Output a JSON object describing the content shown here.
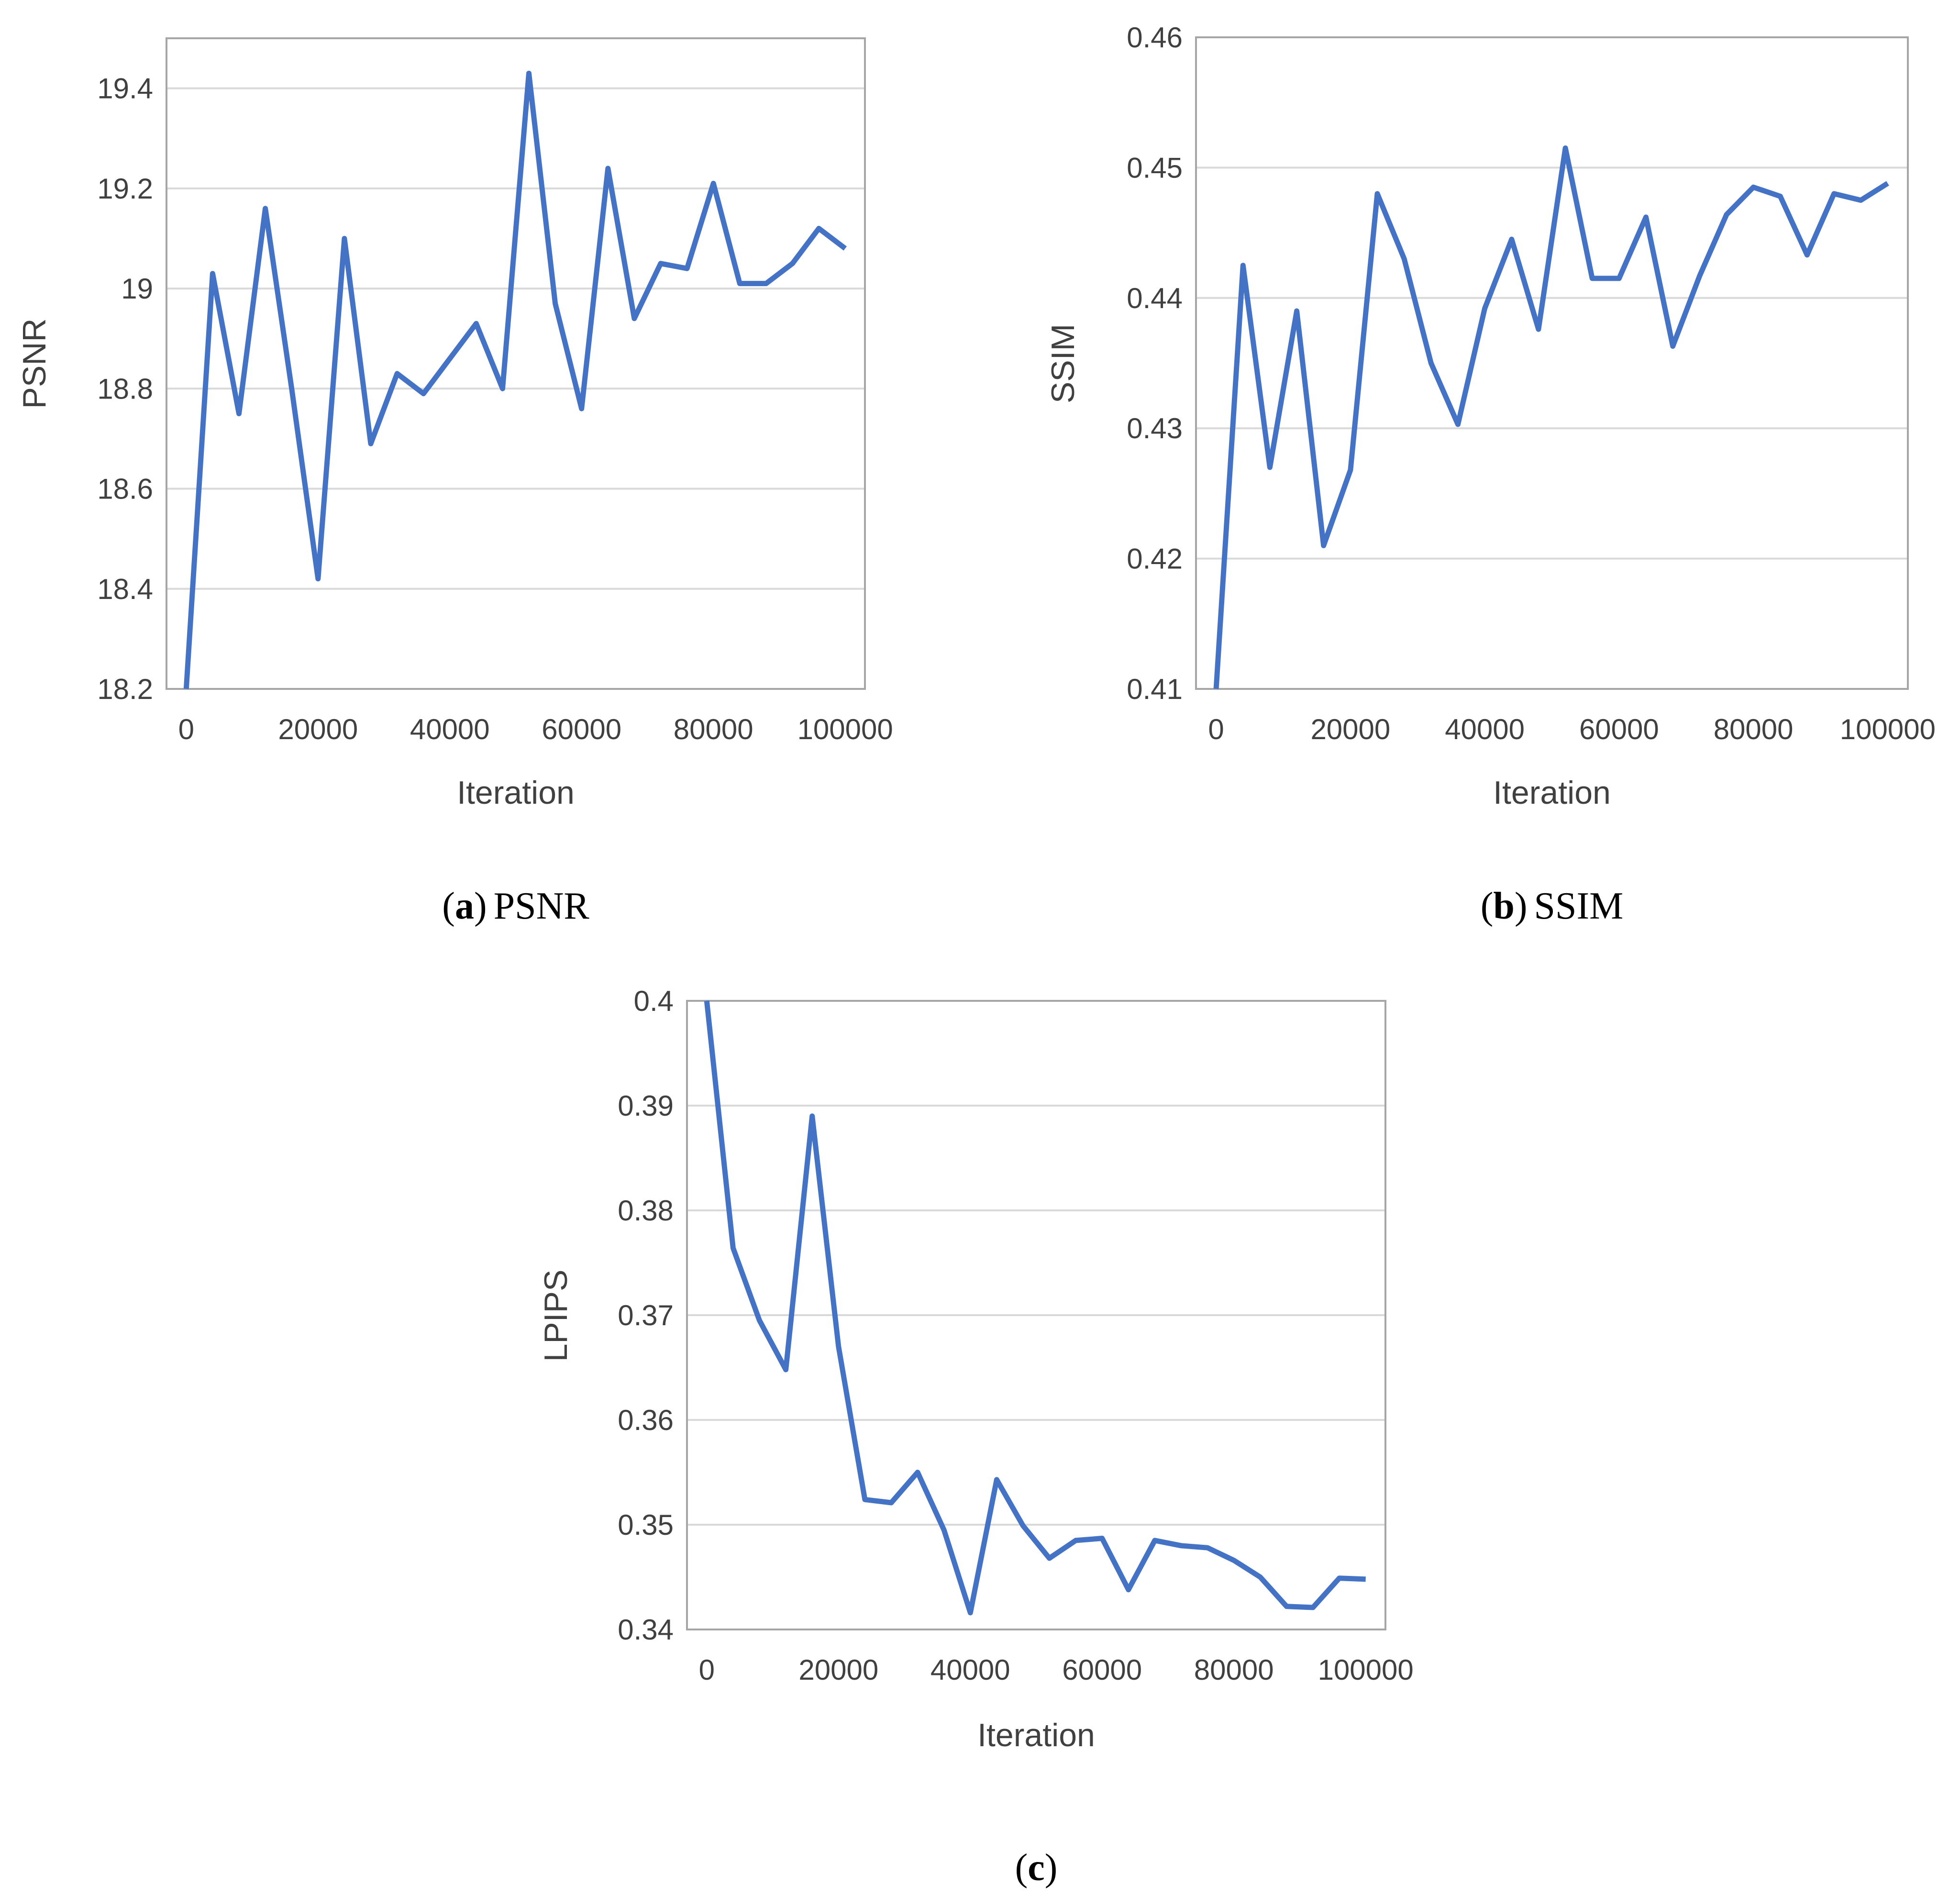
{
  "colors": {
    "line": "#4472C4",
    "grid": "#D9D9D9",
    "frame": "#A6A6A6",
    "text": "#404040"
  },
  "chart_data": [
    {
      "type": "line",
      "id": "psnr",
      "caption_letter": "a",
      "caption_text": "PSNR",
      "xlabel": "Iteration",
      "ylabel": "PSNR",
      "xlim": [
        -3000,
        103000
      ],
      "ylim": [
        18.2,
        19.5
      ],
      "yticks": [
        18.2,
        18.4,
        18.6,
        18.8,
        19.0,
        19.2,
        19.4
      ],
      "ytick_labels": [
        "18.2",
        "18.4",
        "18.6",
        "18.8",
        "19",
        "19.2",
        "19.4"
      ],
      "xticks": [
        0,
        20000,
        40000,
        60000,
        80000,
        100000
      ],
      "xtick_labels": [
        "0",
        "20000",
        "40000",
        "60000",
        "80000",
        "100000"
      ],
      "x": [
        0,
        4000,
        8000,
        12000,
        16000,
        20000,
        24000,
        28000,
        32000,
        36000,
        40000,
        44000,
        48000,
        52000,
        56000,
        60000,
        64000,
        68000,
        72000,
        76000,
        80000,
        84000,
        88000,
        92000,
        96000,
        100000
      ],
      "y": [
        18.2,
        19.03,
        18.75,
        19.16,
        18.8,
        18.42,
        19.1,
        18.69,
        18.83,
        18.79,
        18.86,
        18.93,
        18.8,
        19.43,
        18.97,
        18.76,
        19.24,
        18.94,
        19.05,
        19.04,
        19.21,
        19.01,
        19.01,
        19.05,
        19.12,
        19.08
      ]
    },
    {
      "type": "line",
      "id": "ssim",
      "caption_letter": "b",
      "caption_text": "SSIM",
      "xlabel": "Iteration",
      "ylabel": "SSIM",
      "xlim": [
        -3000,
        103000
      ],
      "ylim": [
        0.41,
        0.46
      ],
      "yticks": [
        0.41,
        0.42,
        0.43,
        0.44,
        0.45,
        0.46
      ],
      "ytick_labels": [
        "0.41",
        "0.42",
        "0.43",
        "0.44",
        "0.45",
        "0.46"
      ],
      "xticks": [
        0,
        20000,
        40000,
        60000,
        80000,
        100000
      ],
      "xtick_labels": [
        "0",
        "20000",
        "40000",
        "60000",
        "80000",
        "100000"
      ],
      "x": [
        0,
        4000,
        8000,
        12000,
        16000,
        20000,
        24000,
        28000,
        32000,
        36000,
        40000,
        44000,
        48000,
        52000,
        56000,
        60000,
        64000,
        68000,
        72000,
        76000,
        80000,
        84000,
        88000,
        92000,
        96000,
        100000
      ],
      "y": [
        0.41,
        0.4425,
        0.427,
        0.439,
        0.421,
        0.4268,
        0.448,
        0.443,
        0.435,
        0.4303,
        0.4392,
        0.4445,
        0.4376,
        0.4515,
        0.4415,
        0.4415,
        0.4462,
        0.4363,
        0.4417,
        0.4464,
        0.4485,
        0.4478,
        0.4433,
        0.448,
        0.4475,
        0.4488
      ]
    },
    {
      "type": "line",
      "id": "lpips",
      "caption_letter": "c",
      "caption_text": "",
      "xlabel": "Iteration",
      "ylabel": "LPIPS",
      "xlim": [
        -3000,
        103000
      ],
      "ylim": [
        0.34,
        0.4
      ],
      "yticks": [
        0.34,
        0.35,
        0.36,
        0.37,
        0.38,
        0.39,
        0.4
      ],
      "ytick_labels": [
        "0.34",
        "0.35",
        "0.36",
        "0.37",
        "0.38",
        "0.39",
        "0.4"
      ],
      "xticks": [
        0,
        20000,
        40000,
        60000,
        80000,
        100000
      ],
      "xtick_labels": [
        "0",
        "20000",
        "40000",
        "60000",
        "80000",
        "100000"
      ],
      "x": [
        0,
        4000,
        8000,
        12000,
        16000,
        20000,
        24000,
        28000,
        32000,
        36000,
        40000,
        44000,
        48000,
        52000,
        56000,
        60000,
        64000,
        68000,
        72000,
        76000,
        80000,
        84000,
        88000,
        92000,
        96000,
        100000
      ],
      "y": [
        0.4,
        0.3764,
        0.3695,
        0.3648,
        0.389,
        0.367,
        0.3524,
        0.3521,
        0.355,
        0.3495,
        0.3416,
        0.3543,
        0.3499,
        0.3468,
        0.3485,
        0.3487,
        0.3438,
        0.3485,
        0.348,
        0.3478,
        0.3466,
        0.345,
        0.3422,
        0.3421,
        0.3449,
        0.3448
      ]
    }
  ]
}
